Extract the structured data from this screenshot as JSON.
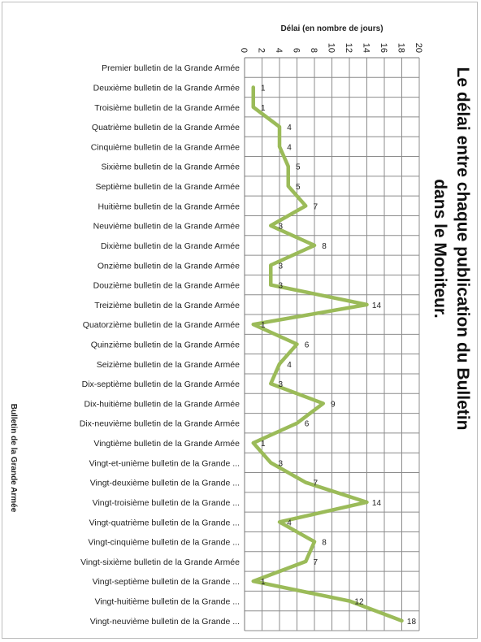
{
  "chart_data": {
    "type": "line",
    "title_line1": "Le délai entre chaque publication du Bulletin",
    "title_line2": "dans le Moniteur.",
    "xlabel": "Bulletin de la Grande Armée",
    "ylabel": "Délai (en nombre de jours)",
    "ylim": [
      0,
      20
    ],
    "yticks": [
      "0",
      "2",
      "4",
      "6",
      "8",
      "10",
      "12",
      "14",
      "16",
      "18",
      "20"
    ],
    "grid": true,
    "line_color": "#9bbb59",
    "categories": [
      "Premier bulletin de la Grande Armée",
      "Deuxième bulletin de la Grande Armée",
      "Troisième bulletin de la Grande Armée",
      "Quatrième bulletin de la Grande Armée",
      "Cinquième bulletin de la Grande Armée",
      "Sixième bulletin de la Grande Armée",
      "Septième bulletin de la Grande Armée",
      "Huitième bulletin de la Grande Armée",
      "Neuvième bulletin de la Grande Armée",
      "Dixième bulletin de la Grande Armée",
      "Onzième bulletin de la Grande Armée",
      "Douzième bulletin de la Grande Armée",
      "Treizième bulletin de la Grande Armée",
      "Quatorzième bulletin de la Grande Armée",
      "Quinzième bulletin de la Grande Armée",
      "Seizième bulletin de la Grande Armée",
      "Dix-septième bulletin de la Grande Armée",
      "Dix-huitième bulletin de la Grande Armée",
      "Dix-neuvième bulletin de la Grande Armée",
      "Vingtième bulletin de la Grande Armée",
      "Vingt-et-unième bulletin de la Grande ...",
      "Vingt-deuxième bulletin de la Grande ...",
      "Vingt-troisième bulletin de la Grande ...",
      "Vingt-quatrième bulletin de la Grande ...",
      "Vingt-cinquième bulletin de la Grande ...",
      "Vingt-sixième bulletin de la Grande Armée",
      "Vingt-septième bulletin de la Grande ...",
      "Vingt-huitième bulletin de la Grande ...",
      "Vingt-neuvième bulletin de la Grande ..."
    ],
    "values": [
      null,
      1,
      1,
      4,
      4,
      5,
      5,
      7,
      3,
      8,
      3,
      3,
      14,
      1,
      6,
      4,
      3,
      9,
      6,
      1,
      3,
      7,
      14,
      4,
      8,
      7,
      1,
      12,
      18
    ],
    "data_labels": [
      "",
      "1",
      "1",
      "4",
      "4",
      "5",
      "5",
      "7",
      "3",
      "8",
      "3",
      "3",
      "14",
      "1",
      "6",
      "4",
      "3",
      "9",
      "6",
      "1",
      "3",
      "7",
      "14",
      "4",
      "8",
      "7",
      "1",
      "12",
      "18"
    ]
  }
}
